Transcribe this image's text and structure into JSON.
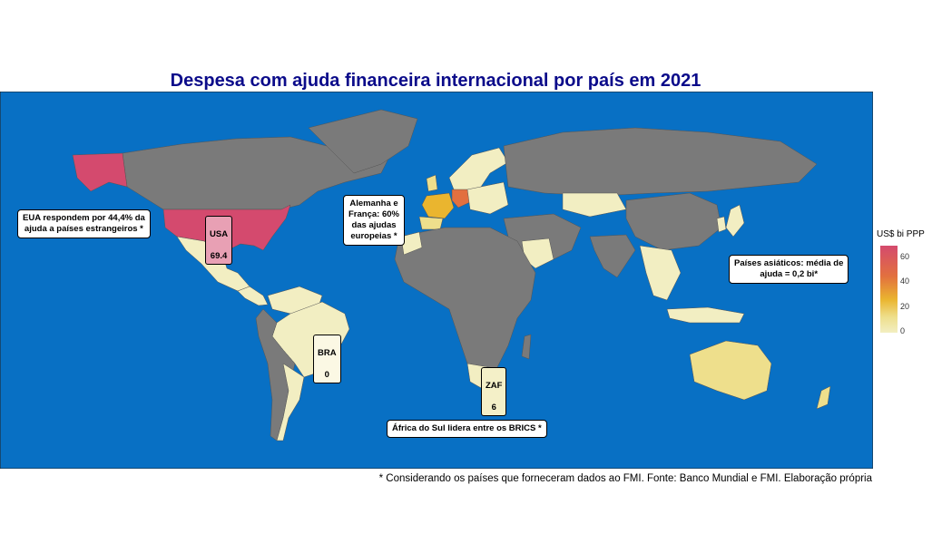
{
  "title": "Despesa com ajuda financeira internacional por país em 2021",
  "caption": "* Considerando os países que forneceram dados ao FMI. Fonte: Banco Mundial e FMI. Elaboração própria",
  "colors": {
    "ocean": "#0870c4",
    "no_data": "#7a7a7a",
    "low": "#f2eec2",
    "mid": "#eab52f",
    "high": "#d44a6e"
  },
  "legend": {
    "title": "US$ bi PPP",
    "ticks": [
      "60",
      "40",
      "20",
      "0"
    ],
    "range": [
      0,
      69.4
    ]
  },
  "country_labels": [
    {
      "code": "USA",
      "value": "69.4"
    },
    {
      "code": "BRA",
      "value": "0"
    },
    {
      "code": "ZAF",
      "value": "6"
    }
  ],
  "annotations": {
    "usa": "EUA respondem por 44,4% da\najuda a países estrangeiros *",
    "europe": "Alemanha e\nFrança: 60%\ndas ajudas\neuropeias *",
    "asia": "Países asiáticos: média de\najuda = 0,2 bi*",
    "africa": "África do Sul lidera entre os BRICS *"
  }
}
